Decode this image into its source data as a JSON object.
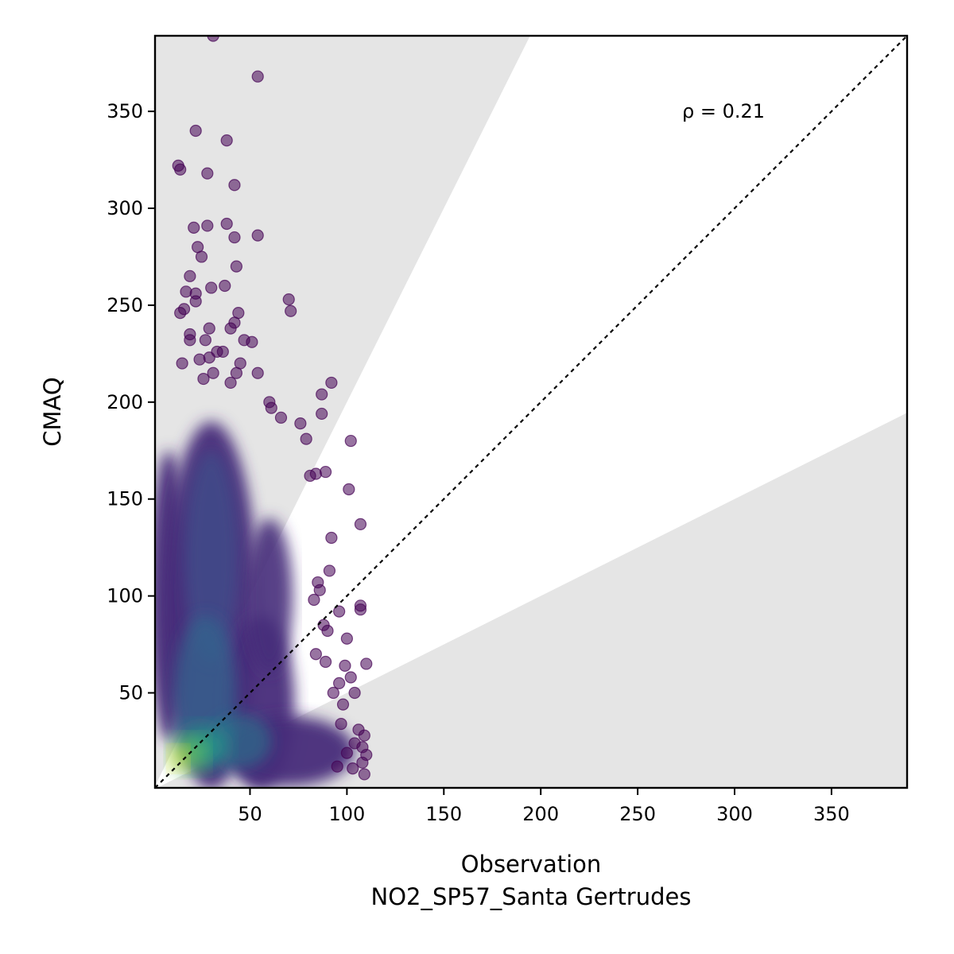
{
  "chart_data": {
    "type": "scatter",
    "title": "",
    "xlabel": "Observation",
    "xlabel_line2": "NO2_SP57_Santa Gertrudes",
    "ylabel": "CMAQ",
    "xlim": [
      1,
      389
    ],
    "ylim": [
      1,
      389
    ],
    "xticks": [
      50,
      100,
      150,
      200,
      250,
      300,
      350
    ],
    "yticks": [
      50,
      100,
      150,
      200,
      250,
      300,
      350
    ],
    "xtick_labels": [
      "50",
      "100",
      "150",
      "200",
      "250",
      "300",
      "350"
    ],
    "ytick_labels": [
      "50",
      "100",
      "150",
      "200",
      "250",
      "300",
      "350"
    ],
    "annotation": "ρ = 0.21",
    "identity_line": true,
    "factor_of_two_band": true,
    "shaded_outside_band_color": "#e5e5e5",
    "colormap": "viridis",
    "grid": false,
    "outlier_points": [
      [
        31,
        389
      ],
      [
        54,
        368
      ],
      [
        22,
        340
      ],
      [
        38,
        335
      ],
      [
        13,
        322
      ],
      [
        14,
        320
      ],
      [
        28,
        318
      ],
      [
        42,
        312
      ],
      [
        38,
        292
      ],
      [
        21,
        290
      ],
      [
        28,
        291
      ],
      [
        42,
        285
      ],
      [
        54,
        286
      ],
      [
        23,
        280
      ],
      [
        25,
        275
      ],
      [
        43,
        270
      ],
      [
        19,
        265
      ],
      [
        37,
        260
      ],
      [
        30,
        259
      ],
      [
        17,
        257
      ],
      [
        22,
        256
      ],
      [
        22,
        252
      ],
      [
        70,
        253
      ],
      [
        71,
        247
      ],
      [
        14,
        246
      ],
      [
        16,
        248
      ],
      [
        44,
        246
      ],
      [
        42,
        241
      ],
      [
        40,
        238
      ],
      [
        29,
        238
      ],
      [
        19,
        235
      ],
      [
        27,
        232
      ],
      [
        47,
        232
      ],
      [
        51,
        231
      ],
      [
        33,
        226
      ],
      [
        19,
        232
      ],
      [
        36,
        226
      ],
      [
        29,
        223
      ],
      [
        24,
        222
      ],
      [
        45,
        220
      ],
      [
        15,
        220
      ],
      [
        43,
        215
      ],
      [
        31,
        215
      ],
      [
        26,
        212
      ],
      [
        40,
        210
      ],
      [
        54,
        215
      ],
      [
        92,
        210
      ],
      [
        87,
        204
      ],
      [
        87,
        194
      ],
      [
        60,
        200
      ],
      [
        79,
        181
      ],
      [
        76,
        189
      ],
      [
        66,
        192
      ],
      [
        61,
        197
      ],
      [
        84,
        163
      ],
      [
        89,
        164
      ],
      [
        81,
        162
      ],
      [
        101,
        155
      ],
      [
        102,
        180
      ],
      [
        107,
        137
      ],
      [
        92,
        130
      ],
      [
        91,
        113
      ],
      [
        85,
        107
      ],
      [
        86,
        103
      ],
      [
        83,
        98
      ],
      [
        96,
        92
      ],
      [
        107,
        93
      ],
      [
        107,
        95
      ],
      [
        88,
        85
      ],
      [
        90,
        82
      ],
      [
        100,
        78
      ],
      [
        84,
        70
      ],
      [
        89,
        66
      ],
      [
        99,
        64
      ],
      [
        110,
        65
      ],
      [
        102,
        58
      ],
      [
        96,
        55
      ],
      [
        104,
        50
      ],
      [
        93,
        50
      ],
      [
        98,
        44
      ],
      [
        97,
        34
      ],
      [
        106,
        31
      ],
      [
        104,
        24
      ],
      [
        108,
        22
      ],
      [
        109,
        28
      ],
      [
        110,
        18
      ],
      [
        108,
        14
      ],
      [
        109,
        8
      ],
      [
        103,
        11
      ],
      [
        95,
        12
      ],
      [
        100,
        19
      ]
    ]
  }
}
